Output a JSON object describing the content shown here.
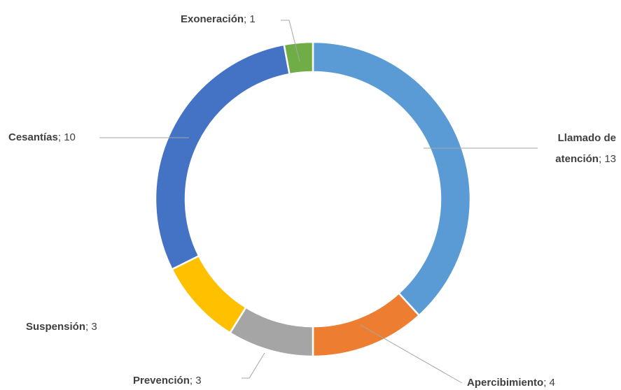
{
  "chart_data": {
    "type": "donut",
    "categories": [
      "Llamado de atención",
      "Apercibimiento",
      "Prevención",
      "Suspensión",
      "Cesantías",
      "Exoneración"
    ],
    "values": [
      13,
      4,
      3,
      3,
      10,
      1
    ],
    "colors": [
      "#5B9BD5",
      "#ED7D31",
      "#A5A5A5",
      "#FFC000",
      "#4472C4",
      "#70AD47"
    ],
    "label_separator": "; "
  }
}
